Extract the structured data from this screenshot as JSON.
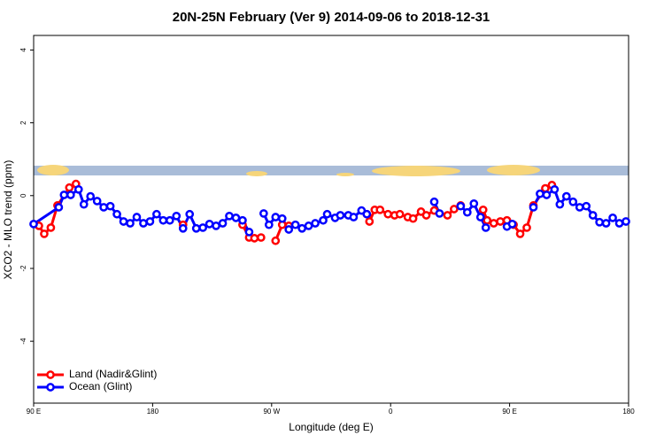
{
  "chart_data": {
    "type": "line",
    "title": "20N-25N February (Ver 9)   2014-09-06 to 2018-12-31",
    "x_label": "Longitude (deg E)",
    "y_label": "XCO2 - MLO trend (ppm)",
    "xlim": [
      90,
      540
    ],
    "ylim": [
      -5.7,
      4.4
    ],
    "xticks": [
      {
        "value": 90,
        "label": "90 E"
      },
      180,
      {
        "value": 270,
        "label": "90 W"
      },
      {
        "value": 360,
        "label": "0"
      },
      {
        "value": 450,
        "label": "90 E"
      },
      180
    ],
    "yticks": [
      -4,
      -2,
      0,
      2,
      4
    ],
    "legend": "bottom-left",
    "series": [
      {
        "name": "Land (Nadir&Glint)",
        "color": "#ff0000",
        "x": [
          94,
          98,
          103,
          108,
          117,
          122,
          150,
          203,
          230,
          248,
          253,
          257,
          262,
          268,
          273,
          278,
          283,
          300,
          342,
          344,
          348,
          352,
          358,
          363,
          367,
          373,
          377,
          383,
          387,
          393,
          403,
          408,
          413,
          420,
          430,
          433,
          438,
          443,
          448,
          453,
          458,
          463,
          468,
          477,
          482
        ],
        "values": [
          -0.83,
          -1.05,
          -0.88,
          -0.27,
          0.22,
          0.32,
          null,
          -0.8,
          null,
          -0.8,
          -1.15,
          -1.17,
          -1.15,
          null,
          -1.24,
          -0.8,
          -0.83,
          null,
          -0.51,
          -0.71,
          -0.39,
          -0.39,
          -0.51,
          -0.54,
          -0.51,
          -0.59,
          -0.63,
          -0.44,
          -0.54,
          -0.41,
          -0.54,
          -0.37,
          -0.27,
          null,
          -0.39,
          -0.68,
          -0.76,
          -0.71,
          -0.68,
          -0.8,
          -1.05,
          -0.88,
          -0.27,
          0.2,
          0.29
        ]
      },
      {
        "name": "Ocean (Glint)",
        "color": "#0000ff",
        "x": [
          90,
          109,
          113,
          118,
          124,
          128,
          133,
          138,
          143,
          148,
          153,
          158,
          163,
          168,
          173,
          178,
          183,
          188,
          193,
          198,
          203,
          208,
          213,
          218,
          223,
          228,
          233,
          238,
          243,
          248,
          253,
          258,
          264,
          268,
          273,
          278,
          283,
          288,
          293,
          298,
          303,
          309,
          312,
          318,
          322,
          328,
          332,
          338,
          342,
          370,
          393,
          397,
          405,
          413,
          418,
          423,
          428,
          432,
          440,
          448,
          452,
          460,
          468,
          473,
          478,
          484,
          488,
          493,
          498,
          503,
          508,
          513,
          518,
          523,
          528,
          533,
          538
        ],
        "values": [
          -0.78,
          -0.32,
          0.02,
          0.02,
          0.17,
          -0.24,
          -0.02,
          -0.15,
          -0.32,
          -0.29,
          -0.51,
          -0.71,
          -0.76,
          -0.59,
          -0.76,
          -0.71,
          -0.51,
          -0.68,
          -0.68,
          -0.56,
          -0.9,
          -0.51,
          -0.9,
          -0.88,
          -0.78,
          -0.83,
          -0.76,
          -0.56,
          -0.61,
          -0.68,
          -1.0,
          null,
          -0.49,
          -0.8,
          -0.59,
          -0.63,
          -0.93,
          -0.8,
          -0.9,
          -0.83,
          -0.76,
          -0.68,
          -0.51,
          -0.61,
          -0.54,
          -0.54,
          -0.59,
          -0.41,
          -0.51,
          null,
          -0.17,
          -0.49,
          null,
          -0.29,
          -0.46,
          -0.22,
          -0.59,
          -0.88,
          null,
          -0.85,
          -0.78,
          null,
          -0.32,
          0.05,
          0.02,
          0.17,
          -0.24,
          -0.02,
          -0.17,
          -0.32,
          -0.29,
          -0.54,
          -0.73,
          -0.76,
          -0.61,
          -0.76,
          -0.71
        ]
      }
    ]
  }
}
